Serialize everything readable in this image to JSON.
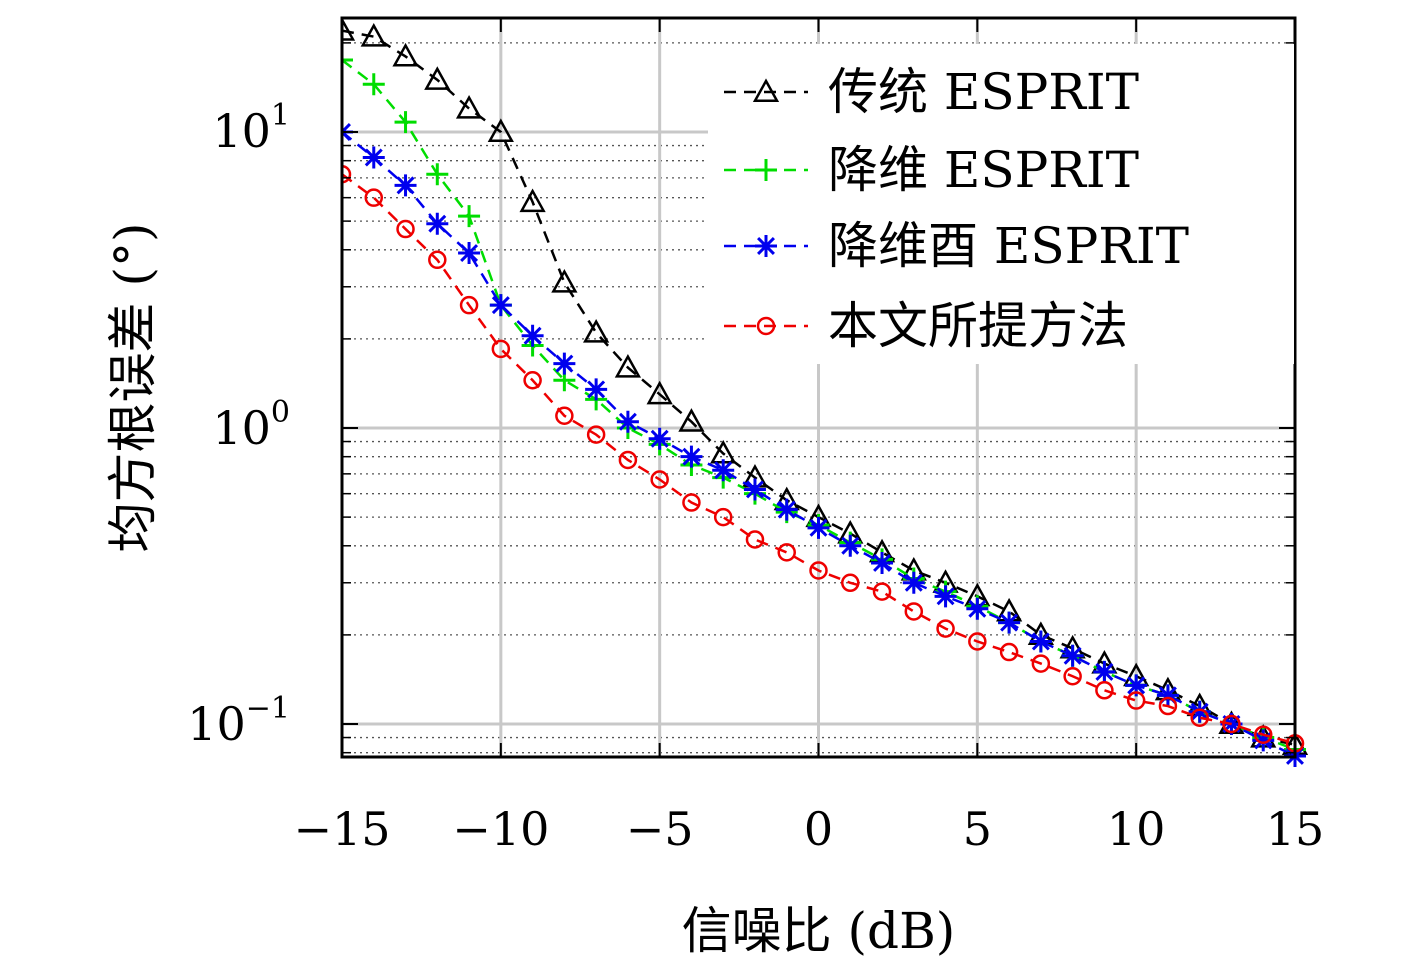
{
  "chart_data": {
    "type": "line",
    "title": "",
    "xlabel": "信噪比 (dB)",
    "ylabel": "均方根误差 (°)",
    "xlim": [
      -15,
      15
    ],
    "ylim": [
      0.08,
      23
    ],
    "yscale": "log",
    "grid": true,
    "legend_position": "top-right",
    "x_ticks": [
      "−15",
      "−10",
      "−5",
      "0",
      "5",
      "10",
      "15"
    ],
    "y_ticks": [
      {
        "base": "10",
        "exp": "1"
      },
      {
        "base": "10",
        "exp": "0"
      },
      {
        "base": "10",
        "exp": "−1"
      }
    ],
    "x": [
      -15,
      -14,
      -13,
      -12,
      -11,
      -10,
      -9,
      -8,
      -7,
      -6,
      -5,
      -4,
      -3,
      -2,
      -1,
      0,
      1,
      2,
      3,
      4,
      5,
      6,
      7,
      8,
      9,
      10,
      11,
      12,
      13,
      14,
      15
    ],
    "series": [
      {
        "name": "传统 ESPRIT",
        "color": "#000000",
        "marker": "triangle",
        "values": [
          22,
          21,
          18,
          15,
          12,
          10,
          5.8,
          3.1,
          2.1,
          1.6,
          1.3,
          1.05,
          0.82,
          0.68,
          0.57,
          0.5,
          0.44,
          0.38,
          0.33,
          0.3,
          0.27,
          0.24,
          0.2,
          0.18,
          0.16,
          0.145,
          0.13,
          0.115,
          0.1,
          0.09,
          0.085
        ]
      },
      {
        "name": "降维 ESPRIT",
        "color": "#00dd00",
        "marker": "plus",
        "values": [
          17.5,
          14.5,
          10.8,
          7.2,
          5.2,
          2.6,
          1.9,
          1.45,
          1.25,
          1.0,
          0.88,
          0.75,
          0.68,
          0.6,
          0.52,
          0.47,
          0.41,
          0.36,
          0.31,
          0.28,
          0.25,
          0.22,
          0.19,
          0.17,
          0.15,
          0.135,
          0.125,
          0.11,
          0.1,
          0.09,
          0.082
        ]
      },
      {
        "name": "降维酉 ESPRIT",
        "color": "#0000ee",
        "marker": "asterisk",
        "values": [
          10,
          8.2,
          6.6,
          4.9,
          3.9,
          2.6,
          2.05,
          1.65,
          1.35,
          1.05,
          0.92,
          0.8,
          0.72,
          0.62,
          0.53,
          0.46,
          0.4,
          0.35,
          0.3,
          0.27,
          0.245,
          0.22,
          0.19,
          0.17,
          0.15,
          0.135,
          0.125,
          0.11,
          0.1,
          0.088,
          0.078
        ]
      },
      {
        "name": "本文所提方法",
        "color": "#ee0000",
        "marker": "circle",
        "values": [
          7.2,
          6.0,
          4.7,
          3.7,
          2.6,
          1.85,
          1.45,
          1.1,
          0.95,
          0.78,
          0.67,
          0.56,
          0.5,
          0.42,
          0.38,
          0.33,
          0.3,
          0.28,
          0.24,
          0.21,
          0.19,
          0.175,
          0.16,
          0.145,
          0.13,
          0.12,
          0.115,
          0.105,
          0.1,
          0.092,
          0.086
        ]
      }
    ]
  }
}
